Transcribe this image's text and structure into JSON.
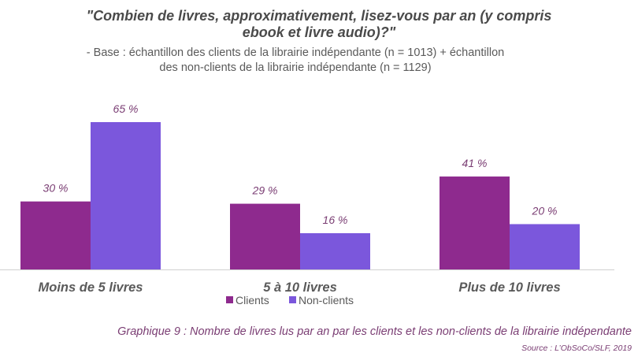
{
  "header": {
    "title_lines": [
      "\"Combien de livres, approximativement, lisez-vous par an (y compris",
      "ebook et livre audio)?\""
    ],
    "subtitle_lines": [
      "- Base : échantillon des clients de la librairie indépendante (n = 1013) + échantillon",
      "des non-clients de la librairie indépendante (n = 1129)"
    ]
  },
  "chart_data": {
    "type": "bar",
    "categories": [
      "Moins de 5 livres",
      "5 à 10 livres",
      "Plus de 10 livres"
    ],
    "series": [
      {
        "name": "Clients",
        "values": [
          30,
          29,
          41
        ],
        "labels": [
          "30 %",
          "29 %",
          "41 %"
        ],
        "color": "#8e2a8e"
      },
      {
        "name": "Non-clients",
        "values": [
          65,
          16,
          20
        ],
        "labels": [
          "65 %",
          "16 %",
          "20 %"
        ],
        "color": "#7b57dc"
      }
    ],
    "ylim": [
      0,
      70
    ],
    "grid": false,
    "legend_position": "bottom",
    "label_color": "#7a3d73"
  },
  "footer": {
    "caption": "Graphique 9 : Nombre de livres lus par an par les clients et les non-clients de la librairie indépendante",
    "source": "Source : L’ObSoCo/SLF, 2019"
  }
}
